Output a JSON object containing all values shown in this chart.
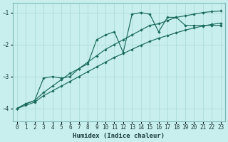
{
  "xlabel": "Humidex (Indice chaleur)",
  "xlim": [
    -0.5,
    23.5
  ],
  "ylim": [
    -4.4,
    -0.7
  ],
  "xticks": [
    0,
    1,
    2,
    3,
    4,
    5,
    6,
    7,
    8,
    9,
    10,
    11,
    12,
    13,
    14,
    15,
    16,
    17,
    18,
    19,
    20,
    21,
    22,
    23
  ],
  "yticks": [
    -4,
    -3,
    -2,
    -1
  ],
  "bg_color": "#c8eeed",
  "grid_color": "#a8d8d8",
  "line_color": "#1a6b5a",
  "line1_x": [
    0,
    1,
    2,
    3,
    4,
    5,
    6,
    7,
    8,
    9,
    10,
    11,
    12,
    13,
    14,
    15,
    16,
    17,
    18,
    19,
    20,
    21,
    22,
    23
  ],
  "line1_y": [
    -4.0,
    -3.85,
    -3.75,
    -3.05,
    -3.0,
    -3.05,
    -3.0,
    -2.75,
    -2.6,
    -1.85,
    -1.7,
    -1.6,
    -2.25,
    -1.05,
    -1.0,
    -1.05,
    -1.6,
    -1.15,
    -1.15,
    -1.4,
    -1.4,
    -1.4,
    -1.4,
    -1.4
  ],
  "line2_x": [
    0,
    1,
    2,
    3,
    4,
    5,
    6,
    7,
    8,
    9,
    10,
    11,
    12,
    13,
    14,
    15,
    16,
    17,
    18,
    19,
    20,
    21,
    22,
    23
  ],
  "line2_y": [
    -4.0,
    -3.85,
    -3.75,
    -3.5,
    -3.3,
    -3.1,
    -2.9,
    -2.75,
    -2.55,
    -2.35,
    -2.15,
    -2.0,
    -1.85,
    -1.7,
    -1.55,
    -1.4,
    -1.35,
    -1.25,
    -1.15,
    -1.1,
    -1.05,
    -1.0,
    -0.97,
    -0.95
  ],
  "line3_x": [
    0,
    1,
    2,
    3,
    4,
    5,
    6,
    7,
    8,
    9,
    10,
    11,
    12,
    13,
    14,
    15,
    16,
    17,
    18,
    19,
    20,
    21,
    22,
    23
  ],
  "line3_y": [
    -4.0,
    -3.9,
    -3.8,
    -3.6,
    -3.45,
    -3.3,
    -3.15,
    -3.0,
    -2.85,
    -2.7,
    -2.55,
    -2.4,
    -2.28,
    -2.15,
    -2.02,
    -1.9,
    -1.8,
    -1.72,
    -1.63,
    -1.55,
    -1.48,
    -1.42,
    -1.37,
    -1.33
  ]
}
